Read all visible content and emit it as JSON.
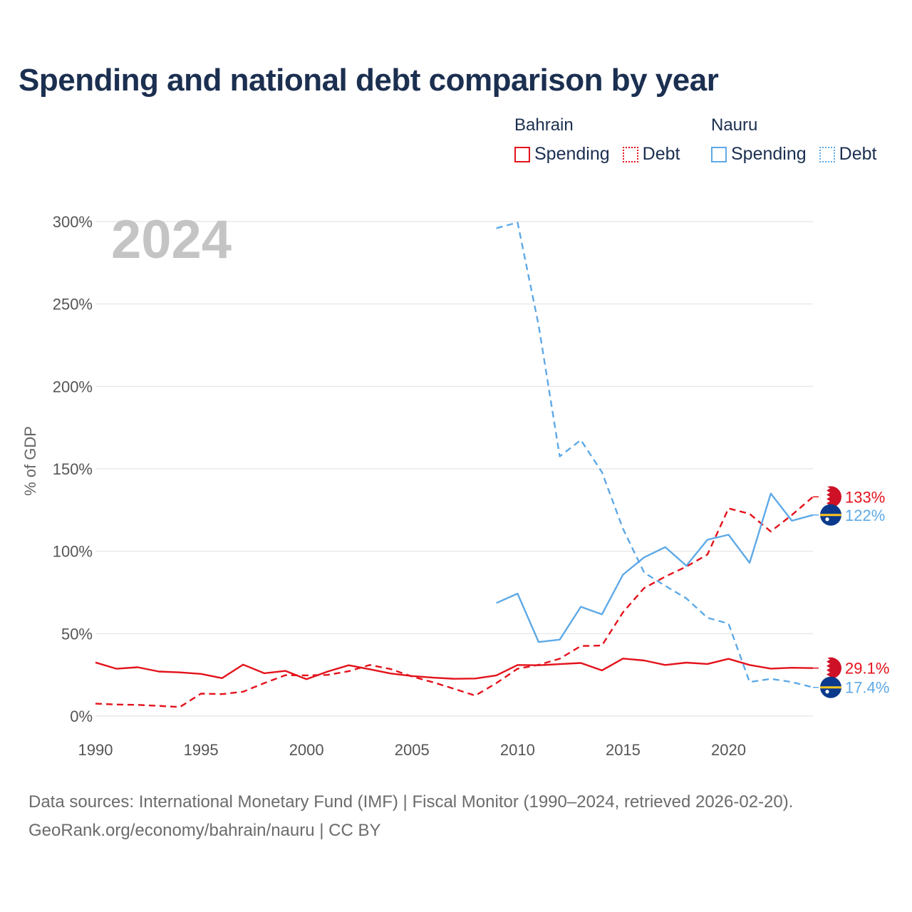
{
  "title": "Spending and national debt comparison by year",
  "legend": {
    "groups": [
      {
        "name": "Bahrain",
        "items": [
          {
            "label": "Spending",
            "style": "solid"
          },
          {
            "label": "Debt",
            "style": "dotted"
          }
        ],
        "color": "#e3121b"
      },
      {
        "name": "Nauru",
        "items": [
          {
            "label": "Spending",
            "style": "solid"
          },
          {
            "label": "Debt",
            "style": "dotted"
          }
        ],
        "color": "#5ea9e6"
      }
    ]
  },
  "colors": {
    "bahrain": "#e3121b",
    "nauru": "#5ea9e6"
  },
  "footer": {
    "line1": "Data sources: International Monetary Fund (IMF) | Fiscal Monitor (1990–2024, retrieved 2026-02-20).",
    "line2": "GeoRank.org/economy/bahrain/nauru | CC BY"
  },
  "chart_data": {
    "type": "line",
    "year_label": "2024",
    "ylabel": "% of GDP",
    "xlim": [
      1990,
      2024
    ],
    "ylim": [
      0,
      300
    ],
    "xticks": [
      1990,
      1995,
      2000,
      2005,
      2010,
      2015,
      2020
    ],
    "xtick_labels": [
      "1990",
      "1995",
      "2000",
      "2005",
      "2010",
      "2015",
      "2020"
    ],
    "yticks": [
      0,
      50,
      100,
      150,
      200,
      250,
      300
    ],
    "ytick_labels": [
      "0%",
      "50%",
      "100%",
      "150%",
      "200%",
      "250%",
      "300%"
    ],
    "grid": true,
    "series": [
      {
        "name": "Bahrain Spending",
        "country": "bahrain",
        "dash": "solid",
        "end_label": "29.1%",
        "x": [
          1990,
          1991,
          1992,
          1993,
          1994,
          1995,
          1996,
          1997,
          1998,
          1999,
          2000,
          2001,
          2002,
          2003,
          2004,
          2005,
          2006,
          2007,
          2008,
          2009,
          2010,
          2011,
          2012,
          2013,
          2014,
          2015,
          2016,
          2017,
          2018,
          2019,
          2020,
          2021,
          2022,
          2023,
          2024
        ],
        "values": [
          32.5,
          28.7,
          29.6,
          27.0,
          26.5,
          25.6,
          23.0,
          31.2,
          26.0,
          27.4,
          22.4,
          27.0,
          30.8,
          28.4,
          25.8,
          24.3,
          23.3,
          22.6,
          22.8,
          24.7,
          31.0,
          30.8,
          31.5,
          32.2,
          27.7,
          34.9,
          33.7,
          31.0,
          32.4,
          31.6,
          34.7,
          31.0,
          28.8,
          29.3,
          29.1
        ]
      },
      {
        "name": "Bahrain Debt",
        "country": "bahrain",
        "dash": "dashed",
        "end_label": "133%",
        "x": [
          1990,
          1991,
          1992,
          1993,
          1994,
          1995,
          1996,
          1997,
          1998,
          1999,
          2000,
          2001,
          2002,
          2003,
          2004,
          2005,
          2006,
          2007,
          2008,
          2009,
          2010,
          2011,
          2012,
          2013,
          2014,
          2015,
          2016,
          2017,
          2018,
          2019,
          2020,
          2021,
          2022,
          2023,
          2024
        ],
        "values": [
          7.5,
          7.0,
          6.8,
          6.2,
          5.5,
          13.6,
          13.3,
          14.8,
          20.0,
          24.8,
          24.7,
          25.0,
          27.2,
          31.0,
          28.5,
          24.0,
          20.5,
          16.5,
          12.4,
          20.0,
          28.7,
          31.1,
          34.8,
          42.5,
          42.8,
          63.0,
          77.7,
          84.6,
          90.7,
          98.0,
          126.0,
          122.7,
          112.0,
          122.0,
          133.0
        ]
      },
      {
        "name": "Nauru Spending",
        "country": "nauru",
        "dash": "solid",
        "end_label": "122%",
        "x": [
          2009,
          2010,
          2011,
          2012,
          2013,
          2014,
          2015,
          2016,
          2017,
          2018,
          2019,
          2020,
          2021,
          2022,
          2023,
          2024
        ],
        "values": [
          68.6,
          74.3,
          44.9,
          46.4,
          66.3,
          61.7,
          85.8,
          96.3,
          102.5,
          91.2,
          107.0,
          110.0,
          93.0,
          135.0,
          118.5,
          122.0
        ]
      },
      {
        "name": "Nauru Debt",
        "country": "nauru",
        "dash": "dashed",
        "end_label": "17.4%",
        "x": [
          2009,
          2010,
          2011,
          2012,
          2013,
          2014,
          2015,
          2016,
          2017,
          2018,
          2019,
          2020,
          2021,
          2022,
          2023,
          2024
        ],
        "values": [
          296.0,
          299.5,
          237.0,
          157.5,
          167.5,
          148.0,
          113.6,
          87.0,
          79.0,
          71.4,
          59.6,
          56.1,
          20.6,
          22.6,
          20.6,
          17.4
        ]
      }
    ]
  }
}
